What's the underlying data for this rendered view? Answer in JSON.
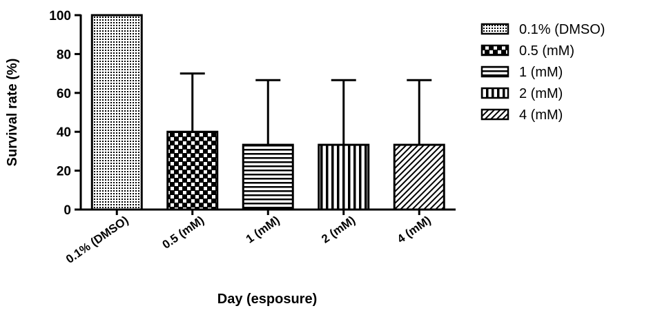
{
  "chart_data": {
    "type": "bar",
    "x_label": "Day (esposure)",
    "y_label": "Survival rate (%)",
    "categories": [
      "0.1% (DMSO)",
      "0.5 (mM)",
      "1 (mM)",
      "2 (mM)",
      "4 (mM)"
    ],
    "values": [
      100,
      40,
      33.3,
      33.3,
      33.3
    ],
    "errors": [
      null,
      30,
      33.3,
      33.3,
      33.3
    ],
    "patterns": [
      "dots",
      "checker",
      "hlines",
      "vlines",
      "diag"
    ],
    "color": "#000000",
    "ylim": [
      0,
      100
    ],
    "yticks": [
      0,
      20,
      40,
      60,
      80,
      100
    ],
    "legend": "right"
  }
}
